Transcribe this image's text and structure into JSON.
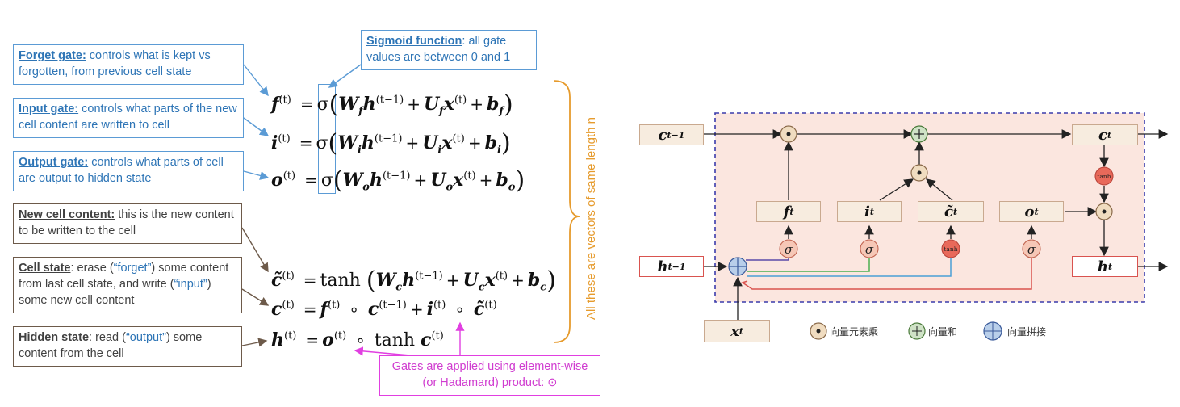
{
  "annotations": {
    "forget": {
      "title": "Forget gate:",
      "text": " controls what is kept vs forgotten, from previous cell state"
    },
    "input": {
      "title": "Input gate:",
      "text": " controls what parts of the new cell content are written to cell"
    },
    "output": {
      "title": "Output gate:",
      "text": " controls what parts of cell are output to hidden state"
    },
    "sigmoid": {
      "title": "Sigmoid function",
      "text": ": all gate values are between 0 and 1"
    },
    "new_cell": {
      "title": "New cell content:",
      "text": " this is the new content to be written to the cell"
    },
    "cell_state": {
      "title": "Cell state",
      "text_a": ": erase (",
      "q1": "“forget”",
      "text_b": ") some content from last cell state, and write (",
      "q2": "“input”",
      "text_c": ") some new cell content"
    },
    "hidden_state": {
      "title": "Hidden state",
      "text_a": ": read (",
      "q1": "“output”",
      "text_b": ") some content from the cell"
    },
    "hadamard": {
      "line1": "Gates are applied using element-wise",
      "line2": "(or Hadamard) product: ⊙"
    }
  },
  "side_label": "All these are vectors of same length n",
  "equations": {
    "f": "f",
    "i": "i",
    "o": "o",
    "c_tilde": "c",
    "c": "c",
    "h": "h",
    "sup_t": "(t)",
    "sup_t1": "(t−1)",
    "sigma": "σ",
    "tanh": "tanh",
    "W": "W",
    "U": "U",
    "b": "b",
    "x": "x",
    "sub_f": "f",
    "sub_i": "i",
    "sub_o": "o",
    "sub_c": "c"
  },
  "diagram": {
    "inputs": {
      "c_prev": "c",
      "c_prev_sub": "t−1",
      "h_prev": "h",
      "h_prev_sub": "t−1",
      "x": "x",
      "x_sub": "t"
    },
    "outputs": {
      "c": "c",
      "c_sub": "t",
      "h": "h",
      "h_sub": "t"
    },
    "gates": {
      "f": "f",
      "f_sub": "t",
      "i": "i",
      "i_sub": "t",
      "c_tilde": "c",
      "c_tilde_sub": "t",
      "o": "o",
      "o_sub": "t"
    },
    "activation_sigma": "σ",
    "activation_tanh": "tanh",
    "legend": [
      {
        "icon": "dot-circle-icon",
        "label": "向量元素乘"
      },
      {
        "icon": "plus-circle-icon",
        "label": "向量和"
      },
      {
        "icon": "concat-circle-icon",
        "label": "向量拼接"
      }
    ],
    "colors": {
      "dashed_border": "#3b3bab",
      "panel_bg": "#fbe6df",
      "sigma_fill": "#f6c7b6",
      "tanh_fill": "#e8695a",
      "op_fill": "#f0dcc0",
      "plus_fill": "#cfe2c6",
      "concat_fill": "#b9cfea"
    }
  }
}
